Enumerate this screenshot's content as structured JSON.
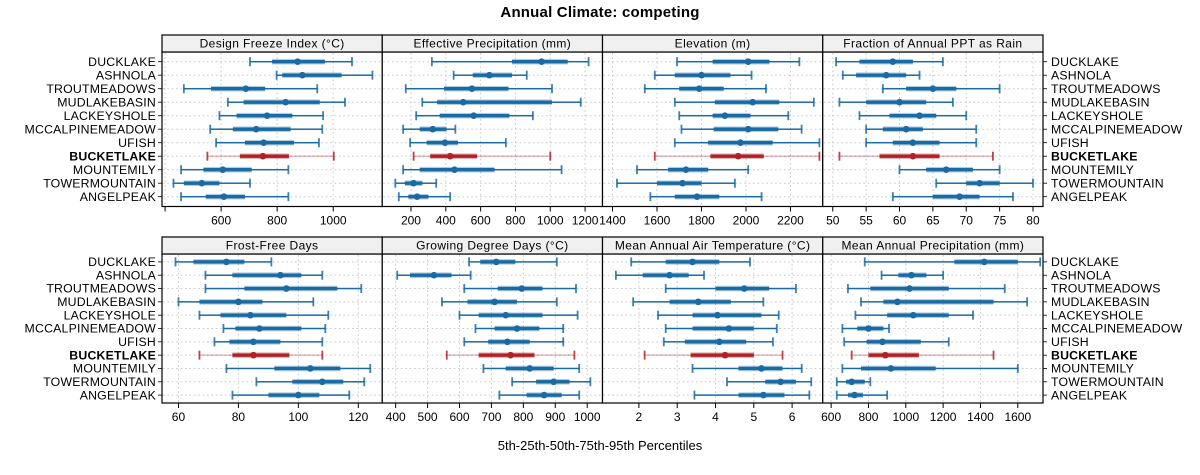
{
  "title": "Annual Climate: competing",
  "caption": "5th-25th-50th-75th-95th Percentiles",
  "colors": {
    "series": "#1a6ba3",
    "highlight": "#b02227",
    "strip_bg": "#f0f0f0",
    "grid": "#c8c8c8",
    "border": "#000000",
    "text": "#000000"
  },
  "chart_data": {
    "type": "percentile_dotplot_trellis",
    "title": "Annual Climate: competing",
    "caption": "5th-25th-50th-75th-95th Percentiles",
    "percentiles": [
      5,
      25,
      50,
      75,
      95
    ],
    "layout": {
      "rows": 2,
      "cols": 4
    },
    "sites": [
      "DUCKLAKE",
      "ASHNOLA",
      "TROUTMEADOWS",
      "MUDLAKEBASIN",
      "LACKEYSHOLE",
      "MCCALPINEMEADOW",
      "UFISH",
      "BUCKETLAKE",
      "MOUNTEMILY",
      "TOWERMOUNTAIN",
      "ANGELPEAK"
    ],
    "highlight_site": "BUCKETLAKE",
    "panels": [
      {
        "title": "Design Freeze Index (°C)",
        "row": 0,
        "col": 0,
        "ticks": [
          600,
          800,
          1000
        ],
        "minor_ticks": [
          400
        ],
        "domain": [
          389,
          1175
        ],
        "values": [
          [
            703,
            782,
            873,
            970,
            1067
          ],
          [
            798,
            818,
            890,
            1030,
            1140
          ],
          [
            467,
            564,
            688,
            757,
            943
          ],
          [
            624,
            680,
            830,
            952,
            1042
          ],
          [
            594,
            655,
            764,
            854,
            964
          ],
          [
            561,
            642,
            725,
            848,
            961
          ],
          [
            582,
            685,
            752,
            860,
            949
          ],
          [
            551,
            667,
            749,
            842,
            1002
          ],
          [
            457,
            537,
            606,
            709,
            840
          ],
          [
            430,
            467,
            531,
            594,
            703
          ],
          [
            457,
            545,
            610,
            685,
            840
          ]
        ]
      },
      {
        "title": "Effective Precipitation (mm)",
        "row": 0,
        "col": 1,
        "ticks": [
          200,
          400,
          600,
          800,
          1000,
          1200
        ],
        "minor_ticks": [],
        "domain": [
          35,
          1300
        ],
        "values": [
          [
            320,
            780,
            950,
            1100,
            1220
          ],
          [
            445,
            555,
            650,
            780,
            865
          ],
          [
            170,
            390,
            550,
            760,
            1010
          ],
          [
            265,
            350,
            500,
            1010,
            1175
          ],
          [
            230,
            365,
            560,
            765,
            900
          ],
          [
            155,
            250,
            325,
            405,
            455
          ],
          [
            195,
            290,
            395,
            470,
            745
          ],
          [
            215,
            310,
            425,
            580,
            1000
          ],
          [
            155,
            250,
            450,
            680,
            1065
          ],
          [
            110,
            165,
            215,
            265,
            345
          ],
          [
            130,
            185,
            235,
            300,
            425
          ]
        ]
      },
      {
        "title": "Elevation (m)",
        "row": 0,
        "col": 2,
        "ticks": [
          1400,
          1600,
          1800,
          2000,
          2200
        ],
        "minor_ticks": [],
        "domain": [
          1355,
          2345
        ],
        "values": [
          [
            1690,
            1850,
            2010,
            2105,
            2240
          ],
          [
            1590,
            1680,
            1800,
            1930,
            2025
          ],
          [
            1545,
            1700,
            1790,
            1900,
            2090
          ],
          [
            1680,
            1860,
            2030,
            2150,
            2305
          ],
          [
            1700,
            1850,
            1905,
            2020,
            2190
          ],
          [
            1710,
            1855,
            2010,
            2145,
            2250
          ],
          [
            1680,
            1830,
            1975,
            2120,
            2330
          ],
          [
            1590,
            1840,
            1965,
            2080,
            2330
          ],
          [
            1510,
            1650,
            1730,
            1830,
            2010
          ],
          [
            1420,
            1600,
            1715,
            1800,
            1950
          ],
          [
            1570,
            1680,
            1780,
            1880,
            2070
          ]
        ]
      },
      {
        "title": "Fraction of Annual PPT as Rain",
        "row": 0,
        "col": 3,
        "ticks": [
          50,
          55,
          60,
          65,
          70,
          75,
          80
        ],
        "minor_ticks": [],
        "domain": [
          48.5,
          81.5
        ],
        "values": [
          [
            50.5,
            54,
            59,
            62,
            66.5
          ],
          [
            51.5,
            53.5,
            58,
            61,
            63
          ],
          [
            57.5,
            61,
            65,
            68.5,
            75
          ],
          [
            51,
            55,
            60,
            64,
            68
          ],
          [
            54,
            58.5,
            63,
            65.5,
            70
          ],
          [
            55,
            57.5,
            61,
            63.5,
            71.5
          ],
          [
            55,
            59,
            62,
            66,
            71.5
          ],
          [
            51,
            57,
            62,
            66,
            74
          ],
          [
            60,
            64,
            67,
            71,
            75
          ],
          [
            65.5,
            70,
            72,
            75,
            80
          ],
          [
            59,
            65,
            69,
            72,
            77
          ]
        ]
      },
      {
        "title": "Frost-Free Days",
        "row": 1,
        "col": 0,
        "ticks": [
          60,
          80,
          100,
          120
        ],
        "minor_ticks": [],
        "domain": [
          54.5,
          128
        ],
        "values": [
          [
            59,
            65,
            76,
            82,
            91
          ],
          [
            69,
            78,
            94,
            101,
            108
          ],
          [
            69,
            82,
            96,
            113,
            121
          ],
          [
            60,
            67,
            80,
            88,
            105
          ],
          [
            67,
            74,
            84,
            96,
            110
          ],
          [
            75,
            79,
            87,
            101,
            109
          ],
          [
            72,
            77,
            85,
            94,
            108
          ],
          [
            67,
            78,
            85,
            97,
            108
          ],
          [
            76,
            92,
            104,
            114,
            124
          ],
          [
            86,
            98,
            108,
            115,
            122
          ],
          [
            78,
            90,
            100,
            107,
            117
          ]
        ]
      },
      {
        "title": "Growing Degree Days (°C)",
        "row": 1,
        "col": 1,
        "ticks": [
          400,
          500,
          600,
          700,
          800,
          900,
          1000
        ],
        "minor_ticks": [],
        "domain": [
          358,
          1048
        ],
        "values": [
          [
            630,
            665,
            715,
            775,
            905
          ],
          [
            405,
            445,
            520,
            575,
            635
          ],
          [
            615,
            720,
            795,
            860,
            965
          ],
          [
            545,
            625,
            710,
            780,
            905
          ],
          [
            600,
            660,
            745,
            860,
            970
          ],
          [
            650,
            710,
            780,
            850,
            925
          ],
          [
            615,
            690,
            750,
            820,
            925
          ],
          [
            560,
            660,
            760,
            835,
            960
          ],
          [
            675,
            745,
            820,
            895,
            975
          ],
          [
            765,
            840,
            895,
            945,
            1010
          ],
          [
            725,
            810,
            865,
            920,
            975
          ]
        ]
      },
      {
        "title": "Mean Annual Air Temperature (°C)",
        "row": 1,
        "col": 2,
        "ticks": [
          2,
          3,
          4,
          5,
          6
        ],
        "minor_ticks": [],
        "domain": [
          1.05,
          6.8
        ],
        "values": [
          [
            1.8,
            2.7,
            3.4,
            4.1,
            4.9
          ],
          [
            1.4,
            2.1,
            2.8,
            3.3,
            3.7
          ],
          [
            2.7,
            4.0,
            4.75,
            5.4,
            6.1
          ],
          [
            1.85,
            2.8,
            3.55,
            4.4,
            5.25
          ],
          [
            2.5,
            3.4,
            4.05,
            5.2,
            5.65
          ],
          [
            2.7,
            3.4,
            4.35,
            5.0,
            5.6
          ],
          [
            2.65,
            3.2,
            4.1,
            4.8,
            5.5
          ],
          [
            2.15,
            3.35,
            4.25,
            5.0,
            5.75
          ],
          [
            3.4,
            4.6,
            5.2,
            5.75,
            6.25
          ],
          [
            4.3,
            5.3,
            5.7,
            6.1,
            6.5
          ],
          [
            3.45,
            4.6,
            5.25,
            5.8,
            6.45
          ]
        ]
      },
      {
        "title": "Mean Annual Precipitation (mm)",
        "row": 1,
        "col": 3,
        "ticks": [
          600,
          800,
          1000,
          1200,
          1400,
          1600
        ],
        "minor_ticks": [],
        "domain": [
          555,
          1735
        ],
        "values": [
          [
            780,
            1260,
            1420,
            1600,
            1720
          ],
          [
            870,
            960,
            1030,
            1110,
            1200
          ],
          [
            690,
            810,
            1020,
            1230,
            1530
          ],
          [
            760,
            880,
            955,
            1470,
            1650
          ],
          [
            730,
            900,
            1040,
            1230,
            1360
          ],
          [
            660,
            740,
            800,
            880,
            910
          ],
          [
            670,
            790,
            875,
            1080,
            1230
          ],
          [
            710,
            800,
            890,
            1070,
            1470
          ],
          [
            660,
            760,
            920,
            1160,
            1600
          ],
          [
            630,
            680,
            710,
            780,
            810
          ],
          [
            630,
            690,
            725,
            770,
            900
          ]
        ]
      }
    ]
  }
}
